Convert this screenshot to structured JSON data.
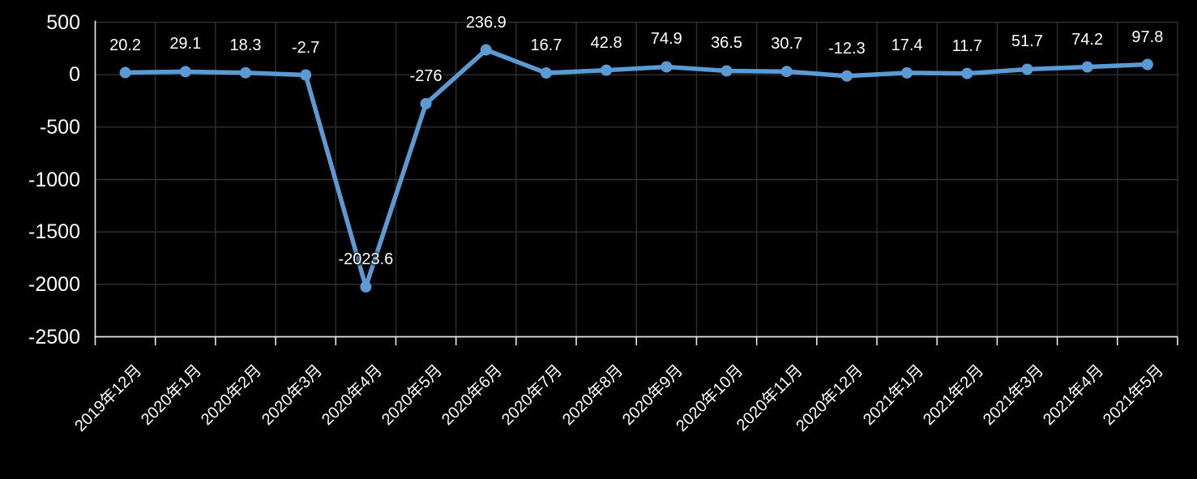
{
  "chart_data": {
    "type": "line",
    "categories": [
      "2019年12月",
      "2020年1月",
      "2020年2月",
      "2020年3月",
      "2020年4月",
      "2020年5月",
      "2020年6月",
      "2020年7月",
      "2020年8月",
      "2020年9月",
      "2020年10月",
      "2020年11月",
      "2020年12月",
      "2021年1月",
      "2021年2月",
      "2021年3月",
      "2021年4月",
      "2021年5月"
    ],
    "values": [
      20.2,
      29.1,
      18.3,
      -2.7,
      -2023.6,
      -276,
      236.9,
      16.7,
      42.8,
      74.9,
      36.5,
      30.7,
      -12.3,
      17.4,
      11.7,
      51.7,
      74.2,
      97.8
    ],
    "data_labels": [
      "20.2",
      "29.1",
      "18.3",
      "-2.7",
      "-2023.6",
      "-276",
      "236.9",
      "16.7",
      "42.8",
      "74.9",
      "36.5",
      "30.7",
      "-12.3",
      "17.4",
      "11.7",
      "51.7",
      "74.2",
      "97.8"
    ],
    "title": "",
    "xlabel": "",
    "ylabel": "",
    "ylim": [
      -2500,
      500
    ],
    "yticks": [
      500,
      0,
      -500,
      -1000,
      -1500,
      -2000,
      -2500
    ],
    "grid": true,
    "legend": "none",
    "x_label_rotation_deg": -45,
    "colors": {
      "background": "#000000",
      "line": "#5B9BD5",
      "marker": "#5B9BD5",
      "text": "#FFFFFF",
      "gridline": "#303030",
      "axis": "#E8E8E8"
    }
  }
}
